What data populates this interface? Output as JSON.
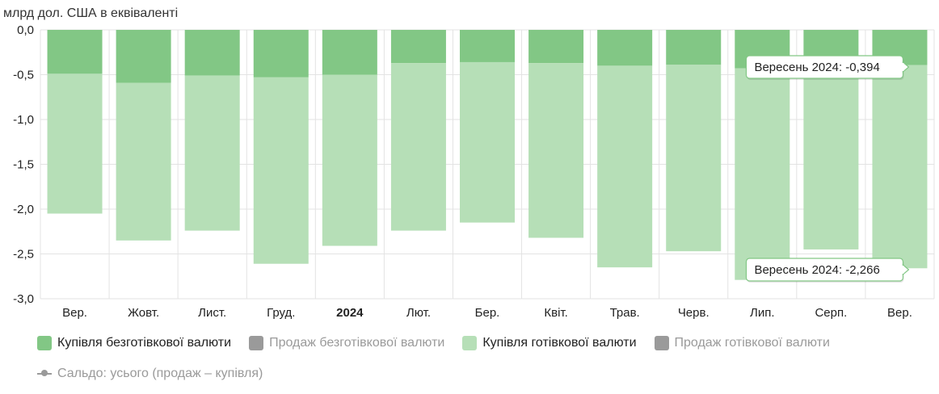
{
  "chart_data": {
    "type": "bar",
    "stacked": true,
    "ylabel": "млрд дол. США в еквіваленті",
    "ylim": [
      -3.0,
      0.0
    ],
    "y_ticks": [
      "0,0",
      "-0,5",
      "-1,0",
      "-1,5",
      "-2,0",
      "-2,5",
      "-3,0"
    ],
    "y_tick_values": [
      0.0,
      -0.5,
      -1.0,
      -1.5,
      -2.0,
      -2.5,
      -3.0
    ],
    "categories": [
      "Вер.",
      "Жовт.",
      "Лист.",
      "Груд.",
      "2024",
      "Лют.",
      "Бер.",
      "Квіт.",
      "Трав.",
      "Черв.",
      "Лип.",
      "Серп.",
      "Вер."
    ],
    "bold_categories": [
      "2024"
    ],
    "grid": true,
    "series": [
      {
        "name": "Купівля безготівкової валюти",
        "color": "#82c785",
        "values": [
          -0.49,
          -0.59,
          -0.51,
          -0.53,
          -0.5,
          -0.37,
          -0.36,
          -0.37,
          -0.4,
          -0.39,
          -0.43,
          -0.38,
          -0.394
        ]
      },
      {
        "name": "Купівля готівкової валюти",
        "color": "#b6dfb7",
        "values": [
          -1.56,
          -1.76,
          -1.73,
          -2.08,
          -1.91,
          -1.87,
          -1.79,
          -1.95,
          -2.25,
          -2.08,
          -2.36,
          -2.07,
          -2.266
        ]
      }
    ],
    "tooltips": [
      "Вересень 2024: -0,394",
      "Вересень 2024: -2,266"
    ]
  },
  "legend": {
    "items": [
      {
        "label": "Купівля безготівкової валюти",
        "color": "#82c785",
        "active": true,
        "type": "box"
      },
      {
        "label": "Продаж безготівкової валюти",
        "color": "#9a9a9a",
        "active": false,
        "type": "box"
      },
      {
        "label": "Купівля готівкової валюти",
        "color": "#b6dfb7",
        "active": true,
        "type": "box"
      },
      {
        "label": "Продаж готівкової валюти",
        "color": "#9a9a9a",
        "active": false,
        "type": "box"
      }
    ],
    "line_item": {
      "label": "Сальдо: усього (продаж – купівля)",
      "active": false
    }
  }
}
